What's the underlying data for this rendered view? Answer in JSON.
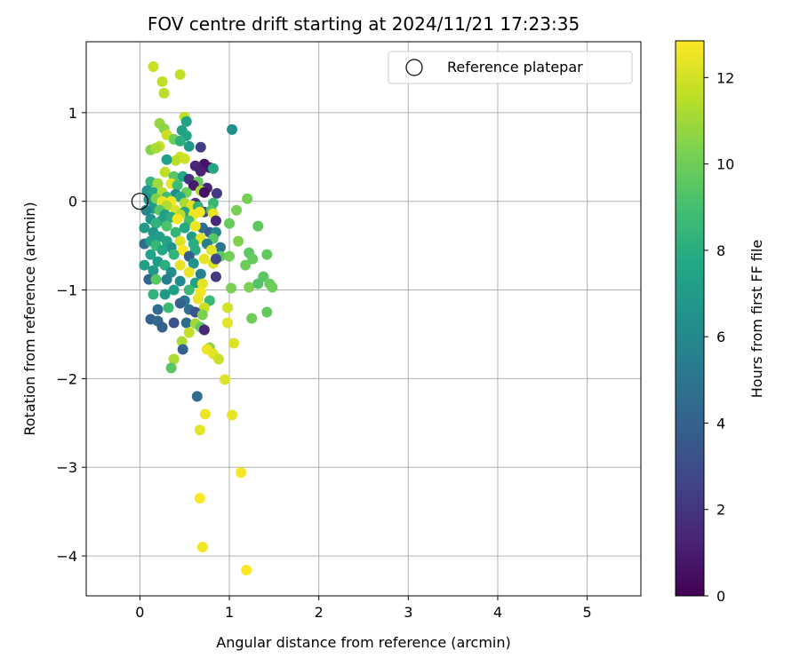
{
  "chart_data": {
    "type": "scatter",
    "title": "FOV centre drift starting at 2024/11/21 17:23:35",
    "xlabel": "Angular distance from reference (arcmin)",
    "ylabel": "Rotation from reference (arcmin)",
    "xlim": [
      -0.6,
      5.6
    ],
    "ylim": [
      -4.45,
      1.8
    ],
    "xticks": [
      0,
      1,
      2,
      3,
      4,
      5
    ],
    "yticks": [
      -4,
      -3,
      -2,
      -1,
      0,
      1
    ],
    "grid": true,
    "legend": {
      "entries": [
        "Reference platepar"
      ],
      "placement": "top-right"
    },
    "reference_point": {
      "x": 0,
      "y": 0,
      "label": "Reference platepar"
    },
    "colorbar": {
      "label": "Hours from first FF file",
      "colormap": "viridis",
      "range": [
        0,
        12.85
      ],
      "ticks": [
        0,
        2,
        4,
        6,
        8,
        10,
        12
      ]
    },
    "points": [
      [
        0.15,
        1.52,
        11.8
      ],
      [
        0.45,
        1.43,
        11.7
      ],
      [
        0.25,
        1.35,
        11.6
      ],
      [
        0.27,
        1.22,
        11.5
      ],
      [
        0.5,
        0.95,
        11.6
      ],
      [
        0.52,
        0.9,
        7.3
      ],
      [
        0.22,
        0.88,
        10.8
      ],
      [
        0.27,
        0.82,
        10.6
      ],
      [
        1.03,
        0.81,
        6.3
      ],
      [
        0.47,
        0.8,
        7.2
      ],
      [
        0.3,
        0.75,
        11.8
      ],
      [
        0.52,
        0.74,
        7.4
      ],
      [
        0.38,
        0.7,
        10.0
      ],
      [
        0.45,
        0.68,
        8.1
      ],
      [
        0.55,
        0.62,
        7.0
      ],
      [
        0.22,
        0.62,
        11.7
      ],
      [
        0.68,
        0.61,
        2.4
      ],
      [
        0.12,
        0.58,
        10.5
      ],
      [
        0.18,
        0.6,
        11.2
      ],
      [
        0.45,
        0.5,
        11.8
      ],
      [
        0.4,
        0.46,
        11.5
      ],
      [
        0.3,
        0.47,
        7.2
      ],
      [
        0.5,
        0.48,
        11.9
      ],
      [
        0.72,
        0.42,
        0.7
      ],
      [
        0.62,
        0.4,
        1.4
      ],
      [
        0.78,
        0.38,
        0.8
      ],
      [
        0.82,
        0.37,
        7.6
      ],
      [
        0.68,
        0.34,
        1.2
      ],
      [
        0.28,
        0.33,
        11.6
      ],
      [
        0.38,
        0.28,
        9.5
      ],
      [
        0.48,
        0.28,
        7.7
      ],
      [
        0.55,
        0.25,
        1.9
      ],
      [
        0.65,
        0.22,
        9.8
      ],
      [
        0.12,
        0.22,
        8.5
      ],
      [
        0.2,
        0.2,
        11.0
      ],
      [
        0.35,
        0.2,
        12.4
      ],
      [
        0.42,
        0.18,
        8.8
      ],
      [
        0.6,
        0.18,
        0.9
      ],
      [
        0.75,
        0.15,
        1.3
      ],
      [
        0.68,
        0.12,
        11.2
      ],
      [
        0.08,
        0.12,
        6.7
      ],
      [
        0.15,
        0.1,
        7.5
      ],
      [
        0.25,
        0.1,
        11.4
      ],
      [
        0.52,
        0.1,
        10.0
      ],
      [
        0.72,
        0.1,
        0.6
      ],
      [
        0.86,
        0.09,
        2.2
      ],
      [
        0.4,
        0.08,
        6.0
      ],
      [
        0.3,
        0.05,
        8.9
      ],
      [
        0.45,
        0.05,
        7.8
      ],
      [
        0.1,
        0.02,
        6.5
      ],
      [
        0.18,
        0.03,
        10.3
      ],
      [
        0.25,
        0.0,
        12.4
      ],
      [
        0.35,
        0.0,
        12.6
      ],
      [
        0.5,
        -0.02,
        11.2
      ],
      [
        0.62,
        -0.02,
        1.8
      ],
      [
        0.82,
        -0.02,
        8.5
      ],
      [
        0.58,
        -0.05,
        12.3
      ],
      [
        0.65,
        -0.06,
        8.2
      ],
      [
        0.3,
        -0.05,
        11.3
      ],
      [
        0.15,
        -0.08,
        7.0
      ],
      [
        0.4,
        -0.1,
        12.1
      ],
      [
        0.22,
        -0.1,
        9.5
      ],
      [
        0.07,
        -0.1,
        5.8
      ],
      [
        0.5,
        -0.12,
        7.5
      ],
      [
        0.72,
        -0.12,
        3.1
      ],
      [
        0.8,
        -0.1,
        9.3
      ],
      [
        0.45,
        -0.15,
        11.5
      ],
      [
        0.28,
        -0.15,
        7.2
      ],
      [
        0.6,
        -0.15,
        12.5
      ],
      [
        0.35,
        -0.18,
        8.0
      ],
      [
        0.12,
        -0.2,
        6.5
      ],
      [
        0.42,
        -0.2,
        12.7
      ],
      [
        0.55,
        -0.22,
        9.0
      ],
      [
        0.82,
        -0.14,
        12.4
      ],
      [
        0.67,
        -0.12,
        12.6
      ],
      [
        0.24,
        -0.22,
        7.3
      ],
      [
        0.85,
        -0.22,
        1.5
      ],
      [
        1.08,
        -0.1,
        10.2
      ],
      [
        1.0,
        -0.25,
        9.8
      ],
      [
        1.2,
        0.03,
        10.1
      ],
      [
        1.32,
        -0.28,
        9.6
      ],
      [
        0.18,
        -0.25,
        8.3
      ],
      [
        0.05,
        -0.3,
        7.0
      ],
      [
        0.3,
        -0.28,
        9.2
      ],
      [
        0.5,
        -0.3,
        7.8
      ],
      [
        0.7,
        -0.3,
        4.5
      ],
      [
        0.62,
        -0.28,
        12.5
      ],
      [
        0.78,
        -0.35,
        3.8
      ],
      [
        0.85,
        -0.35,
        5.8
      ],
      [
        0.15,
        -0.35,
        6.7
      ],
      [
        0.4,
        -0.35,
        8.4
      ],
      [
        0.22,
        -0.4,
        7.1
      ],
      [
        0.58,
        -0.4,
        6.9
      ],
      [
        0.68,
        -0.42,
        12.4
      ],
      [
        0.82,
        -0.42,
        9.5
      ],
      [
        1.1,
        -0.45,
        10.4
      ],
      [
        0.05,
        -0.48,
        4.7
      ],
      [
        0.12,
        -0.45,
        7.2
      ],
      [
        0.3,
        -0.45,
        7.5
      ],
      [
        0.45,
        -0.45,
        12.2
      ],
      [
        0.6,
        -0.48,
        8.0
      ],
      [
        0.75,
        -0.48,
        5.5
      ],
      [
        0.18,
        -0.5,
        8.6
      ],
      [
        0.35,
        -0.52,
        6.4
      ],
      [
        0.9,
        -0.52,
        5.0
      ],
      [
        0.25,
        -0.55,
        7.7
      ],
      [
        0.48,
        -0.55,
        12.8
      ],
      [
        0.62,
        -0.55,
        8.0
      ],
      [
        0.8,
        -0.55,
        12.3
      ],
      [
        1.22,
        -0.58,
        9.6
      ],
      [
        1.18,
        -0.72,
        10.0
      ],
      [
        1.26,
        -0.65,
        9.8
      ],
      [
        1.42,
        -0.6,
        9.7
      ],
      [
        0.12,
        -0.6,
        7.5
      ],
      [
        0.38,
        -0.6,
        8.4
      ],
      [
        0.55,
        -0.62,
        3.8
      ],
      [
        0.72,
        -0.65,
        12.3
      ],
      [
        0.9,
        -0.62,
        9.5
      ],
      [
        1.0,
        -0.62,
        10.1
      ],
      [
        0.2,
        -0.68,
        7.0
      ],
      [
        0.45,
        -0.72,
        12.4
      ],
      [
        0.6,
        -0.7,
        6.6
      ],
      [
        0.82,
        -0.7,
        12.2
      ],
      [
        0.85,
        -0.65,
        2.8
      ],
      [
        0.05,
        -0.72,
        7.2
      ],
      [
        0.28,
        -0.72,
        8.1
      ],
      [
        0.15,
        -0.78,
        6.8
      ],
      [
        0.55,
        -0.8,
        12.5
      ],
      [
        0.35,
        -0.8,
        6.2
      ],
      [
        0.68,
        -0.82,
        5.5
      ],
      [
        0.85,
        -0.85,
        2.2
      ],
      [
        1.38,
        -0.85,
        9.5
      ],
      [
        1.45,
        -0.93,
        9.8
      ],
      [
        1.22,
        -0.97,
        10.3
      ],
      [
        1.48,
        -0.97,
        10.0
      ],
      [
        1.32,
        -0.93,
        9.3
      ],
      [
        0.1,
        -0.88,
        4.2
      ],
      [
        0.18,
        -0.88,
        9.5
      ],
      [
        0.3,
        -0.88,
        5.4
      ],
      [
        0.45,
        -0.9,
        6.1
      ],
      [
        0.62,
        -0.92,
        7.4
      ],
      [
        0.7,
        -0.93,
        12.3
      ],
      [
        1.02,
        -0.98,
        10.2
      ],
      [
        0.38,
        -1.0,
        7.2
      ],
      [
        0.55,
        -1.0,
        8.6
      ],
      [
        0.68,
        -1.02,
        12.6
      ],
      [
        0.15,
        -1.05,
        8.3
      ],
      [
        0.28,
        -1.05,
        7.0
      ],
      [
        0.65,
        -1.1,
        12.4
      ],
      [
        0.78,
        -1.12,
        8.6
      ],
      [
        0.5,
        -1.12,
        5.2
      ],
      [
        0.45,
        -1.15,
        4.0
      ],
      [
        0.72,
        -1.2,
        11.8
      ],
      [
        0.32,
        -1.2,
        8.7
      ],
      [
        0.2,
        -1.22,
        4.5
      ],
      [
        0.55,
        -1.22,
        4.8
      ],
      [
        0.98,
        -1.2,
        12.0
      ],
      [
        1.42,
        -1.25,
        9.7
      ],
      [
        0.62,
        -1.25,
        3.3
      ],
      [
        0.7,
        -1.28,
        10.3
      ],
      [
        1.25,
        -1.32,
        10.0
      ],
      [
        0.12,
        -1.33,
        4.0
      ],
      [
        0.2,
        -1.35,
        4.3
      ],
      [
        0.38,
        -1.37,
        3.2
      ],
      [
        0.52,
        -1.37,
        4.5
      ],
      [
        0.62,
        -1.38,
        11.0
      ],
      [
        0.68,
        -1.42,
        9.7
      ],
      [
        0.25,
        -1.42,
        4.0
      ],
      [
        0.72,
        -1.45,
        1.5
      ],
      [
        0.98,
        -1.37,
        12.3
      ],
      [
        0.55,
        -1.48,
        11.7
      ],
      [
        0.47,
        -1.58,
        11.2
      ],
      [
        1.05,
        -1.6,
        12.2
      ],
      [
        0.78,
        -1.65,
        10.6
      ],
      [
        0.75,
        -1.67,
        12.5
      ],
      [
        0.48,
        -1.67,
        4.0
      ],
      [
        0.82,
        -1.72,
        12.3
      ],
      [
        0.88,
        -1.78,
        11.8
      ],
      [
        0.38,
        -1.78,
        11.2
      ],
      [
        0.35,
        -1.88,
        9.5
      ],
      [
        0.95,
        -2.01,
        12.2
      ],
      [
        0.64,
        -2.2,
        4.5
      ],
      [
        0.73,
        -2.4,
        12.5
      ],
      [
        1.03,
        -2.41,
        12.4
      ],
      [
        0.67,
        -2.58,
        12.4
      ],
      [
        1.13,
        -3.06,
        12.7
      ],
      [
        0.67,
        -3.35,
        12.8
      ],
      [
        0.7,
        -3.9,
        12.6
      ],
      [
        1.19,
        -4.16,
        12.8
      ]
    ]
  }
}
